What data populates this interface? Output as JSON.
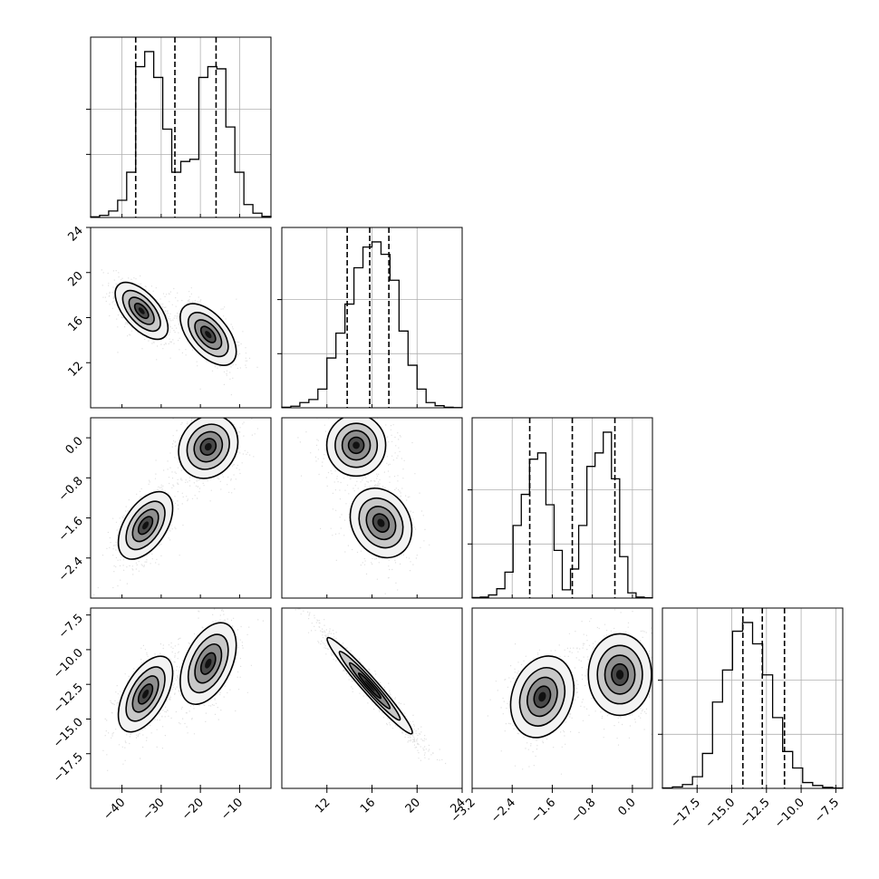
{
  "chart_data": {
    "type": "corner",
    "n_params": 4,
    "params": [
      {
        "range": [
          -48,
          -2
        ],
        "ticks": [
          -40,
          -30,
          -20,
          -10
        ],
        "tick_labels": [
          "−40",
          "−30",
          "−20",
          "−10"
        ],
        "quantiles": [
          -36.5,
          -26.5,
          -16
        ],
        "hist_counts": [
          0.3,
          1,
          3,
          8,
          21,
          70,
          77,
          65,
          41,
          21,
          26,
          27,
          65,
          70,
          69,
          42,
          21,
          6,
          2,
          0.5
        ],
        "hist_y_gridlines": [
          0.35,
          0.6
        ]
      },
      {
        "range": [
          8,
          24
        ],
        "ticks": [
          12,
          16,
          20,
          24
        ],
        "tick_labels": [
          "12",
          "16",
          "20",
          "24"
        ],
        "quantiles": [
          13.8,
          15.8,
          17.5
        ],
        "hist_counts": [
          0.5,
          1.5,
          5,
          8,
          18,
          48,
          72,
          100,
          135,
          155,
          160,
          148,
          123,
          74,
          41,
          18,
          5,
          2,
          0.5,
          0.2
        ],
        "hist_y_gridlines": [
          0.3,
          0.6
        ]
      },
      {
        "range": [
          -3.2,
          0.4
        ],
        "ticks": [
          -3.2,
          -2.4,
          -1.6,
          -0.8,
          0.0
        ],
        "tick_labels": [
          "−3.2",
          "−2.4",
          "−1.6",
          "−0.8",
          "0.0"
        ],
        "quantiles": [
          -2.05,
          -1.2,
          -0.35
        ],
        "hist_counts": [
          0.5,
          1,
          3,
          9,
          25,
          70,
          100,
          134,
          140,
          90,
          46,
          8,
          28,
          70,
          127,
          140,
          160,
          115,
          40,
          5,
          1,
          0.3
        ],
        "hist_y_gridlines": [
          0.3,
          0.6
        ]
      },
      {
        "range": [
          -20,
          -7
        ],
        "ticks": [
          -17.5,
          -15.0,
          -12.5,
          -10.0,
          -7.5
        ],
        "tick_labels": [
          "−17.5",
          "−15.0",
          "−12.5",
          "−10.0",
          "−7.5"
        ],
        "quantiles": [
          -14.2,
          -12.8,
          -11.2
        ],
        "hist_counts": [
          0.5,
          1.5,
          4,
          12,
          36,
          89,
          122,
          162,
          171,
          149,
          117,
          73,
          38,
          21,
          6,
          3,
          1,
          0.3
        ],
        "hist_y_gridlines": [
          0.3,
          0.6
        ]
      }
    ],
    "pair_tick_labels_y": {
      "1": [
        "12",
        "16",
        "20",
        "24"
      ],
      "2": [
        "−2.4",
        "−1.6",
        "−0.8",
        "0.0"
      ],
      "3": [
        "−17.5",
        "−15.0",
        "−12.5",
        "−10.0",
        "−7.5"
      ]
    },
    "pairs": [
      {
        "row": 1,
        "col": 0,
        "clusters": [
          {
            "cx": -35,
            "cy": 16.6,
            "sx": 3.2,
            "sy": 1.2,
            "rho": -0.6,
            "w": 0.55
          },
          {
            "cx": -18,
            "cy": 14.5,
            "sx": 3.4,
            "sy": 1.3,
            "rho": -0.55,
            "w": 0.45
          }
        ]
      },
      {
        "row": 2,
        "col": 0,
        "clusters": [
          {
            "cx": -34,
            "cy": -1.75,
            "sx": 3.3,
            "sy": 0.32,
            "rho": 0.5,
            "w": 0.5
          },
          {
            "cx": -18,
            "cy": -0.18,
            "sx": 3.6,
            "sy": 0.3,
            "rho": 0.15,
            "w": 0.5
          }
        ]
      },
      {
        "row": 2,
        "col": 1,
        "clusters": [
          {
            "cx": 14.6,
            "cy": -0.15,
            "sx": 1.3,
            "sy": 0.28,
            "rho": 0.0,
            "w": 0.5
          },
          {
            "cx": 16.8,
            "cy": -1.7,
            "sx": 1.3,
            "sy": 0.33,
            "rho": -0.2,
            "w": 0.5
          }
        ]
      },
      {
        "row": 3,
        "col": 0,
        "clusters": [
          {
            "cx": -34,
            "cy": -13.2,
            "sx": 3.3,
            "sy": 1.3,
            "rho": 0.55,
            "w": 0.5
          },
          {
            "cx": -18,
            "cy": -11,
            "sx": 3.4,
            "sy": 1.4,
            "rho": 0.45,
            "w": 0.5
          }
        ]
      },
      {
        "row": 3,
        "col": 1,
        "clusters": [
          {
            "cx": 15.8,
            "cy": -12.6,
            "sx": 1.8,
            "sy": 1.65,
            "rho": -0.97,
            "w": 1.0
          }
        ]
      },
      {
        "row": 3,
        "col": 2,
        "clusters": [
          {
            "cx": -1.8,
            "cy": -13.4,
            "sx": 0.3,
            "sy": 1.4,
            "rho": 0.2,
            "w": 0.5
          },
          {
            "cx": -0.25,
            "cy": -11.8,
            "sx": 0.3,
            "sy": 1.4,
            "rho": 0.0,
            "w": 0.5
          }
        ]
      }
    ],
    "grid": true,
    "contour_levels": 4,
    "colors": {
      "line": "#000000",
      "grid": "#b0b0b0",
      "points": "#000000"
    }
  }
}
